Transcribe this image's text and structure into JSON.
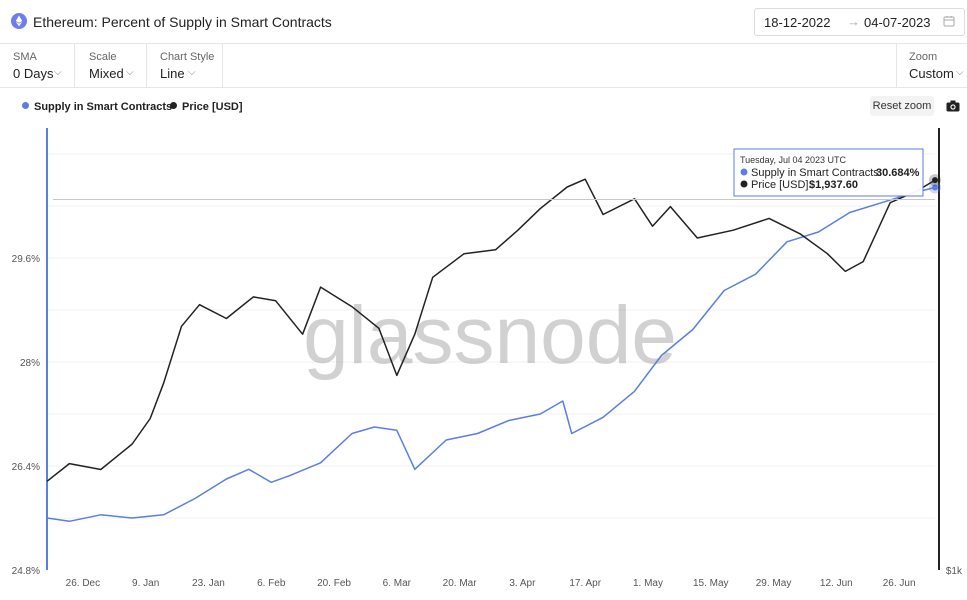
{
  "header": {
    "title": "Ethereum: Percent of Supply in Smart Contracts",
    "date_from": "18-12-2022",
    "date_arrow": "→",
    "date_to": "04-07-2023"
  },
  "controls": {
    "sma": {
      "label": "SMA",
      "value": "0 Days"
    },
    "scale": {
      "label": "Scale",
      "value": "Mixed"
    },
    "chart_style": {
      "label": "Chart Style",
      "value": "Line"
    },
    "zoom": {
      "label": "Zoom",
      "value": "Custom"
    }
  },
  "toolbar": {
    "reset_zoom_label": "Reset zoom"
  },
  "watermark": "glassnode",
  "tooltip": {
    "date": "Tuesday, Jul 04 2023 UTC",
    "supply_label": "Supply in Smart Contracts:",
    "supply_value": "30.684%",
    "price_label": "Price [USD]:",
    "price_value": "$1,937.60"
  },
  "colors": {
    "supply": "#5b7fe0",
    "price": "#222222",
    "grid": "#eeeeee"
  },
  "icons": {
    "title": "ethereum-icon",
    "calendar": "calendar-icon",
    "camera": "camera-icon"
  },
  "chart_data": {
    "type": "line",
    "x_ticks": [
      "26. Dec",
      "9. Jan",
      "23. Jan",
      "6. Feb",
      "20. Feb",
      "6. Mar",
      "20. Mar",
      "3. Apr",
      "17. Apr",
      "1. May",
      "15. May",
      "29. May",
      "12. Jun",
      "26. Jun"
    ],
    "y_ticks": [
      "24.8%",
      "26.4%",
      "28%",
      "29.6%"
    ],
    "y_left_range": [
      24.8,
      31.6
    ],
    "y_right_ticks": [
      "$1k"
    ],
    "legend": [
      "Supply in Smart Contracts",
      "Price [USD]"
    ],
    "legend_position": "top-left",
    "series": [
      {
        "name": "Supply in Smart Contracts",
        "axis": "left",
        "x": [
          "2022-12-18",
          "2022-12-23",
          "2022-12-30",
          "2023-01-06",
          "2023-01-13",
          "2023-01-20",
          "2023-01-27",
          "2023-02-01",
          "2023-02-06",
          "2023-02-10",
          "2023-02-17",
          "2023-02-24",
          "2023-03-01",
          "2023-03-06",
          "2023-03-10",
          "2023-03-17",
          "2023-03-24",
          "2023-03-31",
          "2023-04-07",
          "2023-04-12",
          "2023-04-14",
          "2023-04-21",
          "2023-04-28",
          "2023-05-04",
          "2023-05-11",
          "2023-05-18",
          "2023-05-25",
          "2023-06-01",
          "2023-06-08",
          "2023-06-15",
          "2023-06-22",
          "2023-06-29",
          "2023-07-04"
        ],
        "values": [
          25.6,
          25.55,
          25.65,
          25.6,
          25.65,
          25.9,
          26.2,
          26.35,
          26.15,
          26.25,
          26.45,
          26.9,
          27.0,
          26.95,
          26.35,
          26.8,
          26.9,
          27.1,
          27.2,
          27.4,
          26.9,
          27.15,
          27.55,
          28.1,
          28.5,
          29.1,
          29.35,
          29.85,
          30.0,
          30.3,
          30.45,
          30.6,
          30.684
        ]
      },
      {
        "name": "Price [USD]",
        "axis": "right",
        "x": [
          "2022-12-18",
          "2022-12-23",
          "2022-12-30",
          "2023-01-06",
          "2023-01-10",
          "2023-01-13",
          "2023-01-17",
          "2023-01-21",
          "2023-01-27",
          "2023-02-02",
          "2023-02-07",
          "2023-02-13",
          "2023-02-17",
          "2023-02-24",
          "2023-03-02",
          "2023-03-06",
          "2023-03-10",
          "2023-03-14",
          "2023-03-21",
          "2023-03-28",
          "2023-04-02",
          "2023-04-07",
          "2023-04-13",
          "2023-04-17",
          "2023-04-21",
          "2023-04-28",
          "2023-05-02",
          "2023-05-06",
          "2023-05-12",
          "2023-05-20",
          "2023-05-28",
          "2023-06-04",
          "2023-06-10",
          "2023-06-14",
          "2023-06-18",
          "2023-06-24",
          "2023-06-30",
          "2023-07-04"
        ],
        "values": [
          1170,
          1215,
          1200,
          1265,
          1330,
          1420,
          1565,
          1620,
          1585,
          1640,
          1630,
          1545,
          1665,
          1615,
          1560,
          1440,
          1545,
          1690,
          1750,
          1760,
          1810,
          1865,
          1920,
          1940,
          1850,
          1890,
          1820,
          1870,
          1790,
          1810,
          1840,
          1800,
          1750,
          1705,
          1730,
          1880,
          1910,
          1937.6
        ]
      }
    ],
    "hover": {
      "x": "2023-07-04",
      "supply": 30.684,
      "price": 1937.6
    }
  }
}
